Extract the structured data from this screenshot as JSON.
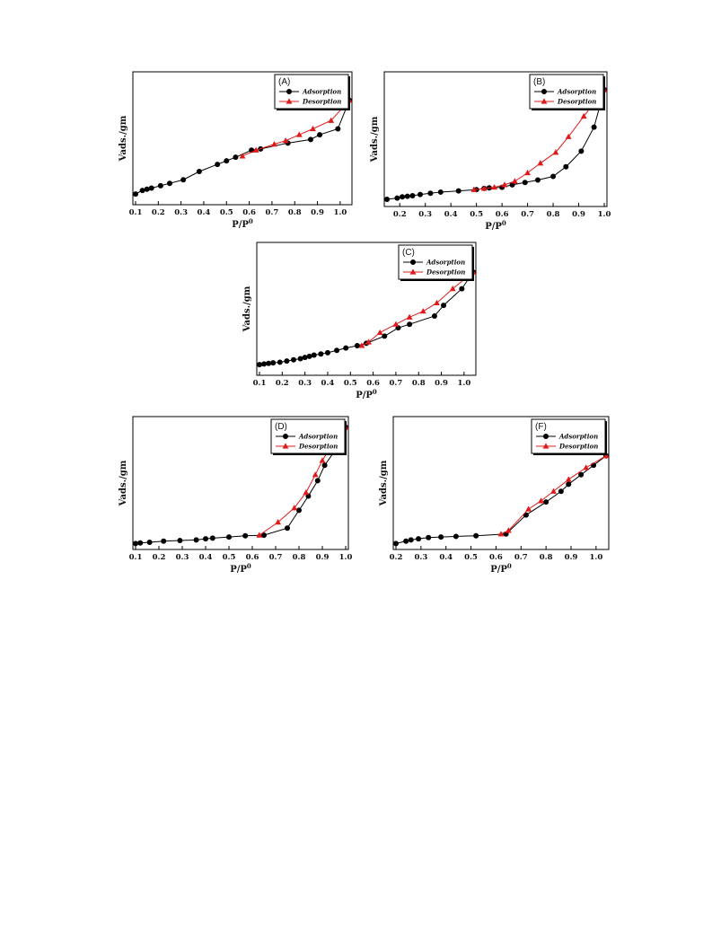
{
  "chart_data": [
    {
      "type": "line",
      "panel_label": "(A)",
      "xlabel": "P/P",
      "xlabel_sup": "0",
      "ylabel": "Vads./gm",
      "xlim": [
        0.1,
        1.04
      ],
      "ylim": [
        0,
        1
      ],
      "xticks": [
        "0.1",
        "0.2",
        "0.3",
        "0.4",
        "0.5",
        "0.6",
        "0.7",
        "0.8",
        "0.9",
        "1.0"
      ],
      "legend": "top-right",
      "series": [
        {
          "name": "Adsorption",
          "color": "#000000",
          "marker": "circle",
          "x": [
            0.1,
            0.13,
            0.15,
            0.17,
            0.21,
            0.25,
            0.31,
            0.38,
            0.46,
            0.5,
            0.54,
            0.61,
            0.65,
            0.77,
            0.87,
            0.91,
            0.99,
            1.04
          ],
          "y": [
            0.06,
            0.09,
            0.1,
            0.11,
            0.13,
            0.15,
            0.18,
            0.25,
            0.31,
            0.34,
            0.37,
            0.43,
            0.44,
            0.49,
            0.52,
            0.56,
            0.61,
            0.85
          ]
        },
        {
          "name": "Desorption",
          "color": "#e0191a",
          "marker": "triangle",
          "x": [
            0.57,
            0.63,
            0.71,
            0.76,
            0.82,
            0.88,
            0.96,
            1.04
          ],
          "y": [
            0.38,
            0.43,
            0.48,
            0.51,
            0.56,
            0.61,
            0.68,
            0.85
          ]
        }
      ]
    },
    {
      "type": "line",
      "panel_label": "(B)",
      "xlabel": "P/P",
      "xlabel_sup": "0",
      "ylabel": "Vads./gm",
      "xlim": [
        0.15,
        1.0
      ],
      "ylim": [
        0,
        1
      ],
      "xticks": [
        "0.2",
        "0.3",
        "0.4",
        "0.5",
        "0.6",
        "0.7",
        "0.8",
        "0.9",
        "1.0"
      ],
      "legend": "top-right",
      "series": [
        {
          "name": "Adsorption",
          "color": "#000000",
          "marker": "circle",
          "x": [
            0.15,
            0.19,
            0.21,
            0.23,
            0.25,
            0.28,
            0.32,
            0.36,
            0.43,
            0.5,
            0.53,
            0.55,
            0.6,
            0.64,
            0.69,
            0.74,
            0.8,
            0.85,
            0.91,
            0.96,
            1.0
          ],
          "y": [
            0.03,
            0.04,
            0.05,
            0.055,
            0.06,
            0.07,
            0.08,
            0.09,
            0.1,
            0.11,
            0.12,
            0.125,
            0.13,
            0.15,
            0.17,
            0.19,
            0.22,
            0.3,
            0.43,
            0.63,
            0.94
          ]
        },
        {
          "name": "Desorption",
          "color": "#e0191a",
          "marker": "triangle",
          "x": [
            0.49,
            0.53,
            0.57,
            0.61,
            0.65,
            0.7,
            0.75,
            0.81,
            0.86,
            0.92,
            1.0
          ],
          "y": [
            0.11,
            0.12,
            0.13,
            0.15,
            0.18,
            0.25,
            0.33,
            0.42,
            0.55,
            0.72,
            0.94
          ]
        }
      ]
    },
    {
      "type": "line",
      "panel_label": "(C)",
      "xlabel": "P/P",
      "xlabel_sup": "0",
      "ylabel": "Vads./gm",
      "xlim": [
        0.1,
        1.04
      ],
      "ylim": [
        0,
        1
      ],
      "xticks": [
        "0.1",
        "0.2",
        "0.3",
        "0.4",
        "0.5",
        "0.6",
        "0.7",
        "0.8",
        "0.9",
        "1.0"
      ],
      "legend": "top-right",
      "series": [
        {
          "name": "Adsorption",
          "color": "#000000",
          "marker": "circle",
          "x": [
            0.1,
            0.12,
            0.14,
            0.16,
            0.19,
            0.22,
            0.25,
            0.28,
            0.3,
            0.32,
            0.34,
            0.37,
            0.4,
            0.44,
            0.48,
            0.53,
            0.57,
            0.65,
            0.71,
            0.76,
            0.87,
            0.91,
            0.99,
            1.04
          ],
          "y": [
            0.06,
            0.065,
            0.07,
            0.075,
            0.08,
            0.09,
            0.1,
            0.11,
            0.12,
            0.13,
            0.14,
            0.15,
            0.16,
            0.18,
            0.2,
            0.22,
            0.24,
            0.3,
            0.37,
            0.4,
            0.47,
            0.56,
            0.7,
            0.84
          ]
        },
        {
          "name": "Desorption",
          "color": "#e0191a",
          "marker": "triangle",
          "x": [
            0.55,
            0.58,
            0.63,
            0.7,
            0.76,
            0.82,
            0.88,
            0.95,
            1.04
          ],
          "y": [
            0.22,
            0.25,
            0.33,
            0.4,
            0.46,
            0.51,
            0.58,
            0.7,
            0.84
          ]
        }
      ]
    },
    {
      "type": "line",
      "panel_label": "(D)",
      "xlabel": "P/P",
      "xlabel_sup": "0",
      "ylabel": "Vads./gm",
      "xlim": [
        0.1,
        1.0
      ],
      "ylim": [
        0,
        1
      ],
      "xticks": [
        "0.1",
        "0.2",
        "0.3",
        "0.4",
        "0.5",
        "0.6",
        "0.7",
        "0.8",
        "0.9",
        "1.0"
      ],
      "legend": "top-right",
      "series": [
        {
          "name": "Adsorption",
          "color": "#000000",
          "marker": "circle",
          "x": [
            0.1,
            0.12,
            0.16,
            0.22,
            0.29,
            0.36,
            0.4,
            0.43,
            0.5,
            0.57,
            0.65,
            0.75,
            0.8,
            0.84,
            0.88,
            0.91,
            0.96,
            1.0
          ],
          "y": [
            0.02,
            0.025,
            0.03,
            0.04,
            0.045,
            0.05,
            0.06,
            0.065,
            0.075,
            0.085,
            0.09,
            0.15,
            0.3,
            0.42,
            0.55,
            0.68,
            0.82,
            1.0
          ]
        },
        {
          "name": "Desorption",
          "color": "#e0191a",
          "marker": "triangle",
          "x": [
            0.63,
            0.71,
            0.78,
            0.83,
            0.87,
            0.9,
            0.95,
            1.0
          ],
          "y": [
            0.09,
            0.2,
            0.32,
            0.45,
            0.6,
            0.72,
            0.88,
            1.0
          ]
        }
      ]
    },
    {
      "type": "line",
      "panel_label": "(F)",
      "xlabel": "P/P",
      "xlabel_sup": "0",
      "ylabel": "Vads./gm",
      "xlim": [
        0.2,
        1.04
      ],
      "ylim": [
        0,
        1
      ],
      "xticks": [
        "0.2",
        "0.3",
        "0.4",
        "0.5",
        "0.6",
        "0.7",
        "0.8",
        "0.9",
        "1.0"
      ],
      "legend": "top-right",
      "series": [
        {
          "name": "Adsorption",
          "color": "#000000",
          "marker": "circle",
          "x": [
            0.2,
            0.24,
            0.26,
            0.29,
            0.33,
            0.38,
            0.44,
            0.52,
            0.64,
            0.72,
            0.8,
            0.86,
            0.89,
            0.94,
            0.99,
            1.04
          ],
          "y": [
            0.02,
            0.04,
            0.05,
            0.06,
            0.07,
            0.075,
            0.08,
            0.085,
            0.1,
            0.26,
            0.37,
            0.46,
            0.52,
            0.6,
            0.68,
            0.76
          ]
        },
        {
          "name": "Desorption",
          "color": "#e0191a",
          "marker": "triangle",
          "x": [
            0.62,
            0.65,
            0.73,
            0.78,
            0.83,
            0.89,
            0.96,
            1.04
          ],
          "y": [
            0.1,
            0.13,
            0.31,
            0.38,
            0.46,
            0.56,
            0.66,
            0.76
          ]
        }
      ]
    }
  ]
}
